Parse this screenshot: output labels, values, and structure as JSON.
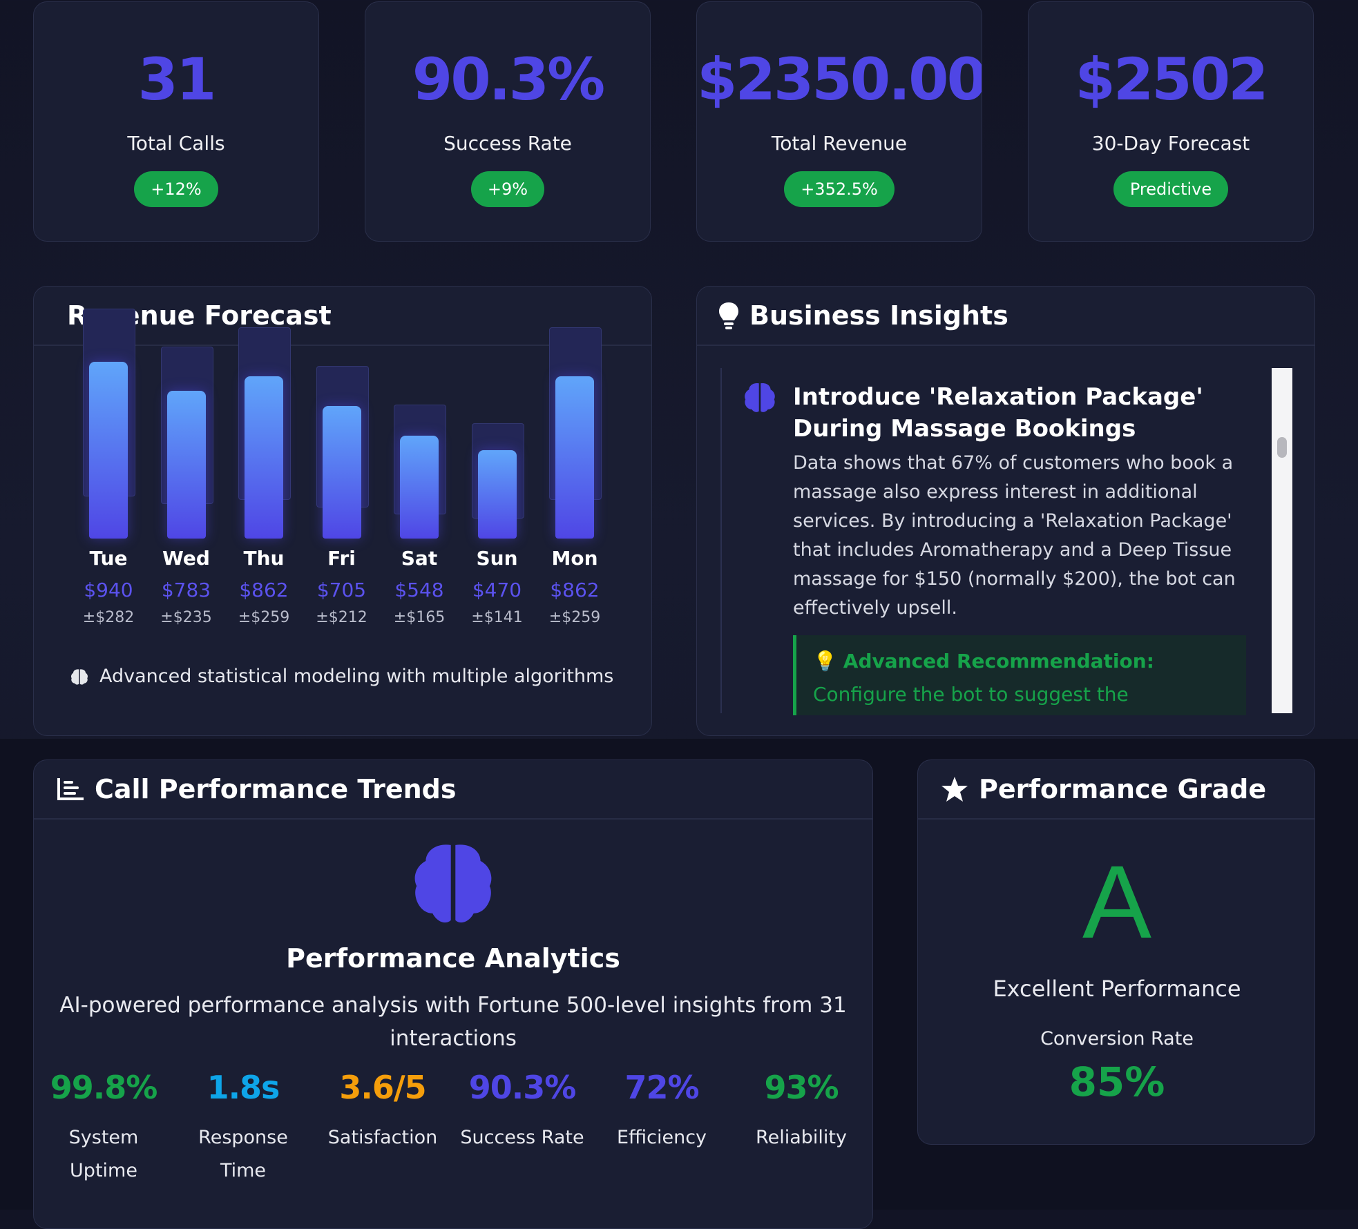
{
  "stats": [
    {
      "value": "31",
      "label": "Total Calls",
      "badge": "+12%"
    },
    {
      "value": "90.3%",
      "label": "Success Rate",
      "badge": "+9%"
    },
    {
      "value": "$2350.00",
      "label": "Total Revenue",
      "badge": "+352.5%"
    },
    {
      "value": "$2502",
      "label": "30-Day Forecast",
      "badge": "Predictive"
    }
  ],
  "forecast": {
    "title": "Revenue Forecast",
    "note": "Advanced statistical modeling with multiple algorithms",
    "days": [
      {
        "day": "Tue",
        "value": "$940",
        "error": "±$282"
      },
      {
        "day": "Wed",
        "value": "$783",
        "error": "±$235"
      },
      {
        "day": "Thu",
        "value": "$862",
        "error": "±$259"
      },
      {
        "day": "Fri",
        "value": "$705",
        "error": "±$212"
      },
      {
        "day": "Sat",
        "value": "$548",
        "error": "±$165"
      },
      {
        "day": "Sun",
        "value": "$470",
        "error": "±$141"
      },
      {
        "day": "Mon",
        "value": "$862",
        "error": "±$259"
      }
    ]
  },
  "insights": {
    "title": "Business Insights",
    "item_title": "Introduce 'Relaxation Package' During Massage Bookings",
    "item_body": "Data shows that 67% of customers who book a massage also express interest in additional services. By introducing a 'Relaxation Package' that includes Aromatherapy and a Deep Tissue massage for $150 (normally $200), the bot can effectively upsell.",
    "rec_label": "Advanced Recommendation:",
    "rec_text": "Configure the bot to suggest the 'Relaxation Package'"
  },
  "trends": {
    "title": "Call Performance Trends",
    "heading": "Performance Analytics",
    "description": "AI-powered performance analysis with Fortune 500-level insights from 31 interactions",
    "metrics": [
      {
        "value": "99.8%",
        "label": "System Uptime",
        "color": "#16a34a"
      },
      {
        "value": "1.8s",
        "label": "Response Time",
        "color": "#0ea5e9"
      },
      {
        "value": "3.6/5",
        "label": "Satisfaction",
        "color": "#f59e0b"
      },
      {
        "value": "90.3%",
        "label": "Success Rate",
        "color": "#4f46e5"
      },
      {
        "value": "72%",
        "label": "Efficiency",
        "color": "#4f46e5"
      },
      {
        "value": "93%",
        "label": "Reliability",
        "color": "#16a34a"
      }
    ]
  },
  "grade": {
    "title": "Performance Grade",
    "letter": "A",
    "description": "Excellent Performance",
    "conversion_label": "Conversion Rate",
    "conversion_value": "85%"
  },
  "colors": {
    "accent": "#4f46e5",
    "success": "#16a34a",
    "panel": "#1a1e33"
  }
}
